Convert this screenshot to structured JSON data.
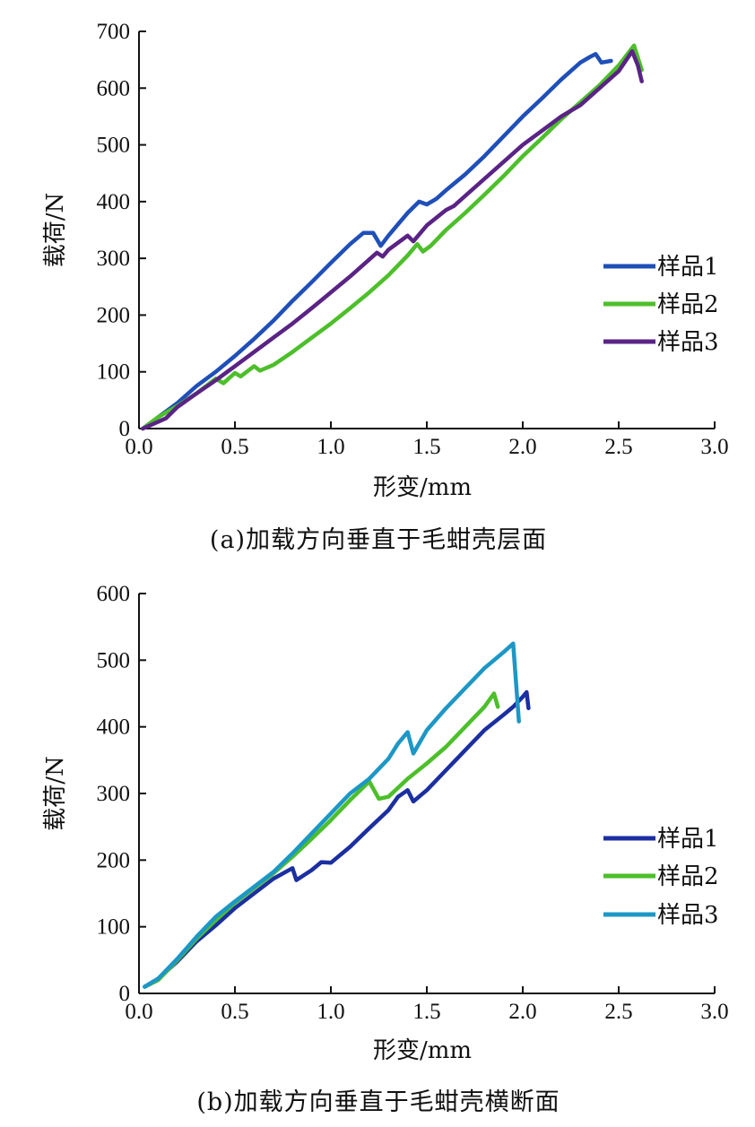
{
  "chart_data": [
    {
      "type": "line",
      "caption": "(a)加载方向垂直于毛蚶壳层面",
      "xlabel": "形变/mm",
      "ylabel": "载荷/N",
      "xlim": [
        0,
        3.0
      ],
      "ylim": [
        0,
        700
      ],
      "xticks": [
        "0.0",
        "0.5",
        "1.0",
        "1.5",
        "2.0",
        "2.5",
        "3.0"
      ],
      "yticks": [
        "0",
        "100",
        "200",
        "300",
        "400",
        "500",
        "600",
        "700"
      ],
      "legend_position": "right",
      "series": [
        {
          "name": "样品1",
          "color": "#1f4fb8",
          "points": [
            [
              0.02,
              0
            ],
            [
              0.1,
              20
            ],
            [
              0.2,
              45
            ],
            [
              0.3,
              75
            ],
            [
              0.4,
              100
            ],
            [
              0.5,
              128
            ],
            [
              0.6,
              158
            ],
            [
              0.7,
              190
            ],
            [
              0.8,
              225
            ],
            [
              0.9,
              258
            ],
            [
              1.0,
              292
            ],
            [
              1.1,
              325
            ],
            [
              1.17,
              345
            ],
            [
              1.22,
              345
            ],
            [
              1.26,
              322
            ],
            [
              1.3,
              340
            ],
            [
              1.4,
              380
            ],
            [
              1.46,
              400
            ],
            [
              1.5,
              395
            ],
            [
              1.55,
              405
            ],
            [
              1.6,
              420
            ],
            [
              1.7,
              448
            ],
            [
              1.8,
              480
            ],
            [
              1.9,
              515
            ],
            [
              2.0,
              550
            ],
            [
              2.1,
              582
            ],
            [
              2.2,
              615
            ],
            [
              2.3,
              645
            ],
            [
              2.35,
              655
            ],
            [
              2.38,
              660
            ],
            [
              2.41,
              645
            ],
            [
              2.46,
              648
            ]
          ]
        },
        {
          "name": "样品2",
          "color": "#4cbf2a",
          "points": [
            [
              0.02,
              0
            ],
            [
              0.1,
              20
            ],
            [
              0.2,
              40
            ],
            [
              0.3,
              62
            ],
            [
              0.4,
              88
            ],
            [
              0.44,
              80
            ],
            [
              0.5,
              98
            ],
            [
              0.53,
              92
            ],
            [
              0.6,
              110
            ],
            [
              0.63,
              102
            ],
            [
              0.7,
              112
            ],
            [
              0.8,
              135
            ],
            [
              0.9,
              160
            ],
            [
              1.0,
              185
            ],
            [
              1.1,
              212
            ],
            [
              1.2,
              240
            ],
            [
              1.3,
              270
            ],
            [
              1.4,
              305
            ],
            [
              1.45,
              325
            ],
            [
              1.48,
              312
            ],
            [
              1.52,
              322
            ],
            [
              1.6,
              350
            ],
            [
              1.7,
              380
            ],
            [
              1.8,
              412
            ],
            [
              1.9,
              445
            ],
            [
              2.0,
              480
            ],
            [
              2.1,
              512
            ],
            [
              2.2,
              545
            ],
            [
              2.3,
              575
            ],
            [
              2.4,
              605
            ],
            [
              2.5,
              640
            ],
            [
              2.58,
              675
            ],
            [
              2.62,
              632
            ]
          ]
        },
        {
          "name": "样品3",
          "color": "#5a2385",
          "points": [
            [
              0.02,
              0
            ],
            [
              0.1,
              12
            ],
            [
              0.14,
              18
            ],
            [
              0.2,
              38
            ],
            [
              0.3,
              62
            ],
            [
              0.4,
              85
            ],
            [
              0.5,
              110
            ],
            [
              0.6,
              135
            ],
            [
              0.7,
              160
            ],
            [
              0.8,
              185
            ],
            [
              0.9,
              212
            ],
            [
              1.0,
              240
            ],
            [
              1.1,
              268
            ],
            [
              1.2,
              298
            ],
            [
              1.24,
              310
            ],
            [
              1.27,
              303
            ],
            [
              1.3,
              315
            ],
            [
              1.4,
              340
            ],
            [
              1.43,
              330
            ],
            [
              1.5,
              358
            ],
            [
              1.6,
              385
            ],
            [
              1.64,
              392
            ],
            [
              1.7,
              410
            ],
            [
              1.8,
              440
            ],
            [
              1.9,
              470
            ],
            [
              2.0,
              500
            ],
            [
              2.1,
              525
            ],
            [
              2.2,
              550
            ],
            [
              2.3,
              570
            ],
            [
              2.4,
              600
            ],
            [
              2.5,
              630
            ],
            [
              2.57,
              665
            ],
            [
              2.6,
              640
            ],
            [
              2.62,
              612
            ]
          ]
        }
      ]
    },
    {
      "type": "line",
      "caption": "(b)加载方向垂直于毛蚶壳横断面",
      "xlabel": "形变/mm",
      "ylabel": "载荷/N",
      "xlim": [
        0,
        3.0
      ],
      "ylim": [
        0,
        600
      ],
      "xticks": [
        "0.0",
        "0.5",
        "1.0",
        "1.5",
        "2.0",
        "2.5",
        "3.0"
      ],
      "yticks": [
        "0",
        "100",
        "200",
        "300",
        "400",
        "500",
        "600"
      ],
      "legend_position": "right",
      "series": [
        {
          "name": "样品1",
          "color": "#1b2fa0",
          "points": [
            [
              0.03,
              10
            ],
            [
              0.1,
              22
            ],
            [
              0.2,
              48
            ],
            [
              0.3,
              78
            ],
            [
              0.4,
              102
            ],
            [
              0.5,
              128
            ],
            [
              0.6,
              150
            ],
            [
              0.7,
              172
            ],
            [
              0.8,
              188
            ],
            [
              0.82,
              170
            ],
            [
              0.9,
              185
            ],
            [
              0.95,
              197
            ],
            [
              1.0,
              196
            ],
            [
              1.1,
              220
            ],
            [
              1.2,
              248
            ],
            [
              1.3,
              275
            ],
            [
              1.35,
              295
            ],
            [
              1.4,
              305
            ],
            [
              1.43,
              288
            ],
            [
              1.5,
              305
            ],
            [
              1.6,
              335
            ],
            [
              1.7,
              365
            ],
            [
              1.8,
              395
            ],
            [
              1.9,
              418
            ],
            [
              1.95,
              430
            ],
            [
              2.0,
              445
            ],
            [
              2.02,
              452
            ],
            [
              2.03,
              428
            ]
          ]
        },
        {
          "name": "样品2",
          "color": "#4cbf2a",
          "points": [
            [
              0.03,
              10
            ],
            [
              0.1,
              20
            ],
            [
              0.2,
              50
            ],
            [
              0.3,
              82
            ],
            [
              0.4,
              110
            ],
            [
              0.5,
              136
            ],
            [
              0.6,
              158
            ],
            [
              0.7,
              180
            ],
            [
              0.8,
              205
            ],
            [
              0.9,
              232
            ],
            [
              1.0,
              260
            ],
            [
              1.1,
              290
            ],
            [
              1.2,
              318
            ],
            [
              1.25,
              292
            ],
            [
              1.3,
              295
            ],
            [
              1.4,
              322
            ],
            [
              1.5,
              345
            ],
            [
              1.6,
              370
            ],
            [
              1.7,
              400
            ],
            [
              1.8,
              430
            ],
            [
              1.85,
              450
            ],
            [
              1.87,
              430
            ]
          ]
        },
        {
          "name": "样品3",
          "color": "#1d97c6",
          "points": [
            [
              0.03,
              10
            ],
            [
              0.1,
              22
            ],
            [
              0.2,
              52
            ],
            [
              0.3,
              85
            ],
            [
              0.4,
              115
            ],
            [
              0.5,
              138
            ],
            [
              0.6,
              160
            ],
            [
              0.7,
              182
            ],
            [
              0.8,
              210
            ],
            [
              0.9,
              240
            ],
            [
              1.0,
              270
            ],
            [
              1.1,
              300
            ],
            [
              1.2,
              322
            ],
            [
              1.3,
              352
            ],
            [
              1.35,
              375
            ],
            [
              1.4,
              392
            ],
            [
              1.43,
              360
            ],
            [
              1.5,
              395
            ],
            [
              1.6,
              428
            ],
            [
              1.7,
              458
            ],
            [
              1.8,
              488
            ],
            [
              1.9,
              512
            ],
            [
              1.95,
              525
            ],
            [
              1.98,
              408
            ]
          ]
        }
      ]
    }
  ]
}
